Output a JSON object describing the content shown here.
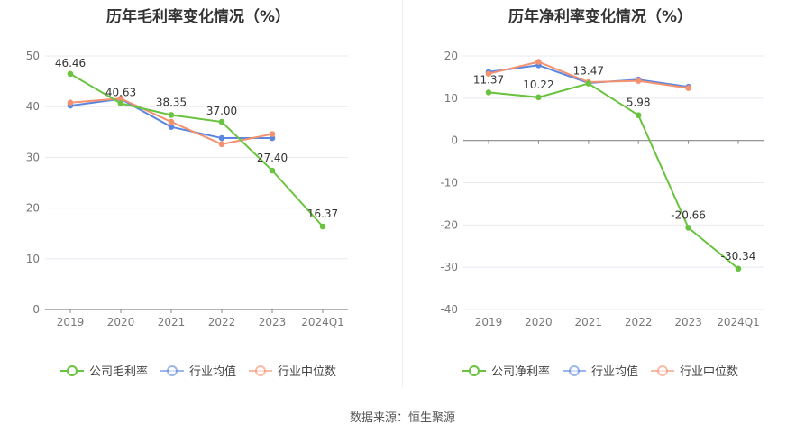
{
  "source_text": "数据来源：恒生聚源",
  "colors": {
    "company": "#6ac33e",
    "industry_avg": "#5b86e0",
    "industry_median": "#f4916e",
    "grid": "#e8e8f0",
    "axis": "#888888",
    "tick_text": "#777777"
  },
  "chart_data": [
    {
      "type": "line",
      "title": "历年毛利率变化情况（%）",
      "categories": [
        "2019",
        "2020",
        "2021",
        "2022",
        "2023",
        "2024Q1"
      ],
      "ylim": [
        0,
        50
      ],
      "yticks": [
        0,
        10,
        20,
        30,
        40,
        50
      ],
      "grid": true,
      "legend_position": "bottom",
      "series": [
        {
          "name": "公司毛利率",
          "color_key": "company",
          "values": [
            46.46,
            40.63,
            38.35,
            37.0,
            27.4,
            16.37
          ],
          "labels": [
            "46.46",
            "40.63",
            "38.35",
            "37.00",
            "27.40",
            "16.37"
          ]
        },
        {
          "name": "行业均值",
          "color_key": "industry_avg",
          "values": [
            40.2,
            41.5,
            36.0,
            33.8,
            33.8,
            null
          ]
        },
        {
          "name": "行业中位数",
          "color_key": "industry_median",
          "values": [
            40.8,
            41.6,
            37.0,
            32.6,
            34.6,
            null
          ]
        }
      ]
    },
    {
      "type": "line",
      "title": "历年净利率变化情况（%）",
      "categories": [
        "2019",
        "2020",
        "2021",
        "2022",
        "2023",
        "2024Q1"
      ],
      "ylim": [
        -40,
        20
      ],
      "yticks": [
        -40,
        -30,
        -20,
        -10,
        0,
        10,
        20
      ],
      "grid": true,
      "legend_position": "bottom",
      "series": [
        {
          "name": "公司净利率",
          "color_key": "company",
          "values": [
            11.37,
            10.22,
            13.47,
            5.98,
            -20.66,
            -30.34
          ],
          "labels": [
            "11.37",
            "10.22",
            "13.47",
            "5.98",
            "-20.66",
            "-30.34"
          ]
        },
        {
          "name": "行业均值",
          "color_key": "industry_avg",
          "values": [
            16.2,
            17.8,
            13.6,
            14.4,
            12.7,
            null
          ]
        },
        {
          "name": "行业中位数",
          "color_key": "industry_median",
          "values": [
            15.8,
            18.6,
            13.8,
            14.1,
            12.4,
            null
          ]
        }
      ]
    }
  ]
}
